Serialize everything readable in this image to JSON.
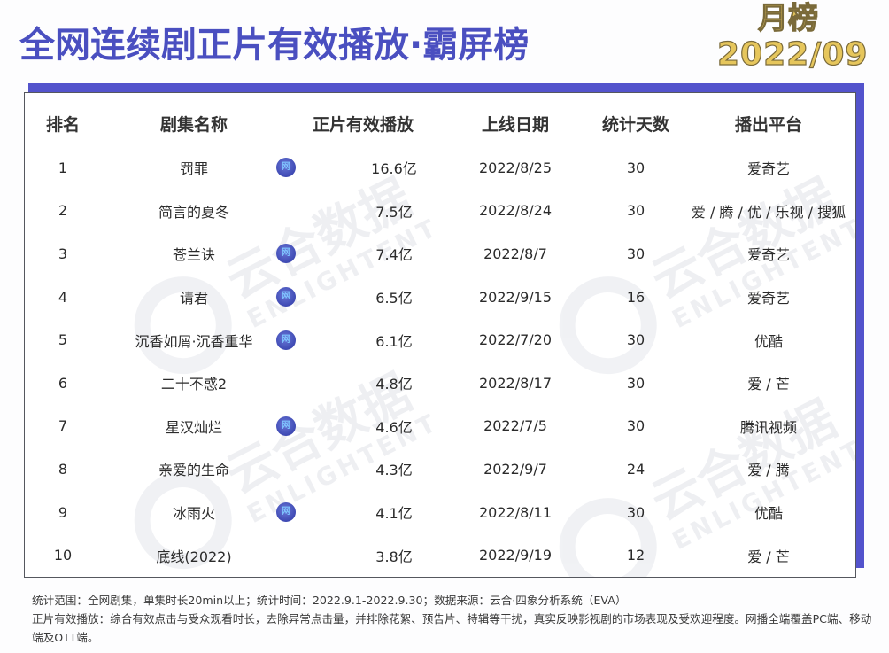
{
  "header": {
    "title": "全网连续剧正片有效播放·霸屏榜",
    "badge_line1": "月榜",
    "badge_line2": "2022/09"
  },
  "watermark": {
    "cn": "云合数据",
    "en": "ENLIGHTENT"
  },
  "table": {
    "columns": [
      "排名",
      "剧集名称",
      "正片有效播放",
      "上线日期",
      "统计天数",
      "播出平台"
    ],
    "net_icon_label": "网",
    "rows": [
      {
        "rank": "1",
        "name": "罚罪",
        "net": true,
        "plays": "16.6亿",
        "date": "2022/8/25",
        "days": "30",
        "platform": "爱奇艺"
      },
      {
        "rank": "2",
        "name": "简言的夏冬",
        "net": false,
        "plays": "7.5亿",
        "date": "2022/8/24",
        "days": "30",
        "platform": "爱 / 腾 / 优 / 乐视 / 搜狐"
      },
      {
        "rank": "3",
        "name": "苍兰诀",
        "net": true,
        "plays": "7.4亿",
        "date": "2022/8/7",
        "days": "30",
        "platform": "爱奇艺"
      },
      {
        "rank": "4",
        "name": "请君",
        "net": true,
        "plays": "6.5亿",
        "date": "2022/9/15",
        "days": "16",
        "platform": "爱奇艺"
      },
      {
        "rank": "5",
        "name": "沉香如屑·沉香重华",
        "net": true,
        "plays": "6.1亿",
        "date": "2022/7/20",
        "days": "30",
        "platform": "优酷"
      },
      {
        "rank": "6",
        "name": "二十不惑2",
        "net": false,
        "plays": "4.8亿",
        "date": "2022/8/17",
        "days": "30",
        "platform": "爱 / 芒"
      },
      {
        "rank": "7",
        "name": "星汉灿烂",
        "net": true,
        "plays": "4.6亿",
        "date": "2022/7/5",
        "days": "30",
        "platform": "腾讯视频"
      },
      {
        "rank": "8",
        "name": "亲爱的生命",
        "net": false,
        "plays": "4.3亿",
        "date": "2022/9/7",
        "days": "24",
        "platform": "爱 / 腾"
      },
      {
        "rank": "9",
        "name": "冰雨火",
        "net": true,
        "plays": "4.1亿",
        "date": "2022/8/11",
        "days": "30",
        "platform": "优酷"
      },
      {
        "rank": "10",
        "name": "底线(2022)",
        "net": false,
        "plays": "3.8亿",
        "date": "2022/9/19",
        "days": "12",
        "platform": "爱 / 芒"
      }
    ]
  },
  "footnote": {
    "line1": "统计范围：全网剧集，单集时长20min以上；统计时间：2022.9.1-2022.9.30；数据来源：云合·四象分析系统（EVA）",
    "line2": "正片有效播放：综合有效点击与受众观看时长，去除异常点击量，并排除花絮、预告片、特辑等干扰，真实反映影视剧的市场表现及受欢迎程度。网播全端覆盖PC端、移动端及OTT端。"
  },
  "colors": {
    "title": "#4a4fc0",
    "frame": "#5353cc",
    "badge_fill": "#e6c65c",
    "plays_text": "#3e4476"
  }
}
